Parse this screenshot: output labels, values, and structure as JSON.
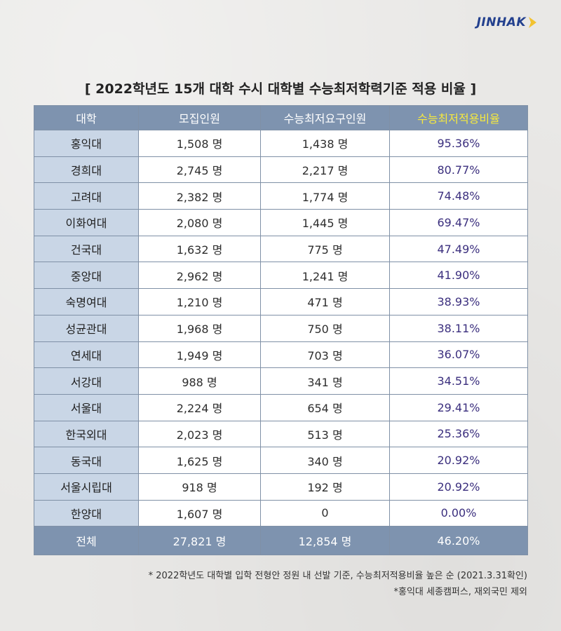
{
  "brand": {
    "logo_text": "JINHAK"
  },
  "title": "[ 2022학년도 15개 대학 수시 대학별 수능최저학력기준 적용 비율 ]",
  "table": {
    "headers": [
      "대학",
      "모집인원",
      "수능최저요구인원",
      "수능최저적용비율"
    ],
    "rows": [
      [
        "홍익대",
        "1,508 명",
        "1,438 명",
        "95.36%"
      ],
      [
        "경희대",
        "2,745 명",
        "2,217 명",
        "80.77%"
      ],
      [
        "고려대",
        "2,382 명",
        "1,774 명",
        "74.48%"
      ],
      [
        "이화여대",
        "2,080 명",
        "1,445 명",
        "69.47%"
      ],
      [
        "건국대",
        "1,632 명",
        "775 명",
        "47.49%"
      ],
      [
        "중앙대",
        "2,962 명",
        "1,241 명",
        "41.90%"
      ],
      [
        "숙명여대",
        "1,210 명",
        "471 명",
        "38.93%"
      ],
      [
        "성균관대",
        "1,968 명",
        "750 명",
        "38.11%"
      ],
      [
        "연세대",
        "1,949 명",
        "703 명",
        "36.07%"
      ],
      [
        "서강대",
        "988 명",
        "341 명",
        "34.51%"
      ],
      [
        "서울대",
        "2,224 명",
        "654 명",
        "29.41%"
      ],
      [
        "한국외대",
        "2,023 명",
        "513 명",
        "25.36%"
      ],
      [
        "동국대",
        "1,625 명",
        "340 명",
        "20.92%"
      ],
      [
        "서울시립대",
        "918 명",
        "192 명",
        "20.92%"
      ],
      [
        "한양대",
        "1,607 명",
        "0",
        "0.00%"
      ]
    ],
    "total": [
      "전체",
      "27,821 명",
      "12,854 명",
      "46.20%"
    ]
  },
  "notes": [
    "* 2022학년도 대학별 입학 전형안 정원 내 선발 기준, 수능최저적용비율 높은 순 (2021.3.31확인)",
    "*홍익대 세종캠퍼스, 재외국민 제외"
  ],
  "colors": {
    "header_bg": "#7e93af",
    "name_col_bg": "#c9d6e6",
    "highlight_header": "#f6e93e",
    "rate_text": "#3b2f7e",
    "logo": "#23408e",
    "logo_chevron": "#f2c230"
  }
}
